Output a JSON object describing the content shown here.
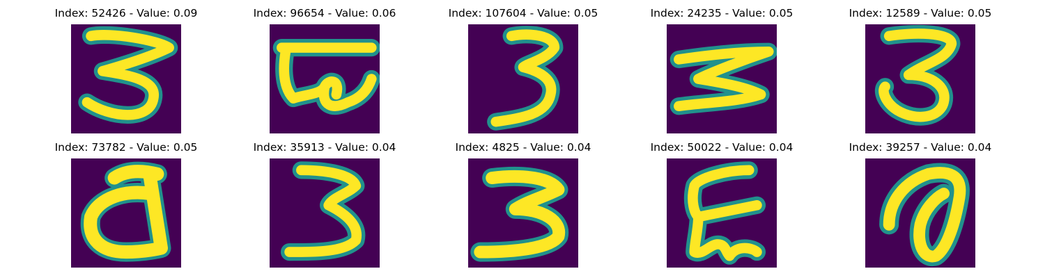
{
  "panels": [
    {
      "title": "Index: 52426 - Value: 0.09",
      "index": 52426,
      "value": 0.09,
      "glyph": "3"
    },
    {
      "title": "Index: 96654 - Value: 0.06",
      "index": 96654,
      "value": 0.06,
      "glyph": "stacked-e"
    },
    {
      "title": "Index: 107604 - Value: 0.05",
      "index": 107604,
      "value": 0.05,
      "glyph": "3"
    },
    {
      "title": "Index: 24235 - Value: 0.05",
      "index": 24235,
      "value": 0.05,
      "glyph": "wide-3"
    },
    {
      "title": "Index: 12589 - Value: 0.05",
      "index": 12589,
      "value": 0.05,
      "glyph": "3"
    },
    {
      "title": "Index: 73782 - Value: 0.05",
      "index": 73782,
      "value": 0.05,
      "glyph": "d"
    },
    {
      "title": "Index: 35913 - Value: 0.04",
      "index": 35913,
      "value": 0.04,
      "glyph": "3"
    },
    {
      "title": "Index: 4825 - Value: 0.04",
      "index": 4825,
      "value": 0.04,
      "glyph": "3"
    },
    {
      "title": "Index: 50022 - Value: 0.04",
      "index": 50022,
      "value": 0.04,
      "glyph": "squiggle-e"
    },
    {
      "title": "Index: 39257 - Value: 0.04",
      "index": 39257,
      "value": 0.04,
      "glyph": "a-loop"
    }
  ],
  "colors": {
    "background": "#440154",
    "stroke": "#fde725",
    "edge": "#21918c"
  }
}
